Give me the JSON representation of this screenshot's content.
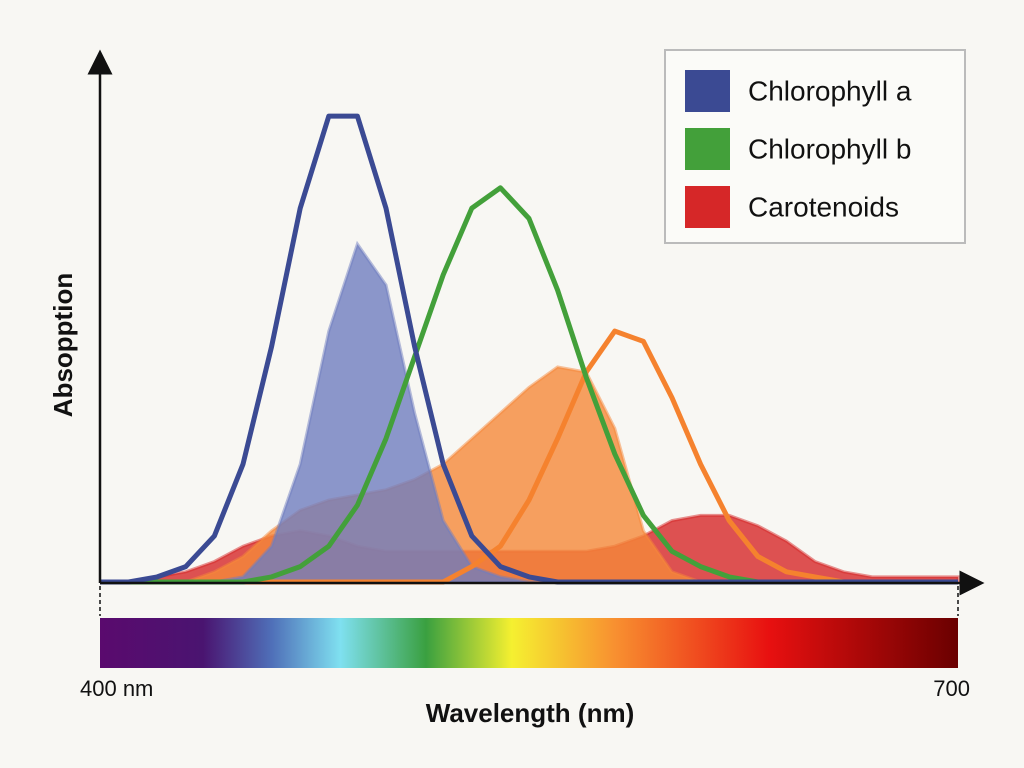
{
  "chart_data": {
    "type": "line",
    "x_label": "Wavelength (nm)",
    "y_label": "Absopption",
    "xlim": [
      400,
      700
    ],
    "xticks": [
      {
        "value": 400,
        "label": "400 nm"
      },
      700
    ],
    "ylim": [
      0,
      1
    ],
    "legend": "top-right",
    "x": [
      400,
      410,
      420,
      430,
      440,
      450,
      460,
      470,
      480,
      490,
      500,
      510,
      520,
      530,
      540,
      550,
      560,
      570,
      580,
      590,
      600,
      610,
      620,
      630,
      640,
      650,
      660,
      670,
      680,
      690,
      700
    ],
    "series": [
      {
        "name": "Carotenoids",
        "color": "#d62728",
        "style": "area",
        "values": [
          0,
          0,
          0.01,
          0.02,
          0.04,
          0.07,
          0.09,
          0.1,
          0.09,
          0.07,
          0.06,
          0.06,
          0.06,
          0.06,
          0.06,
          0.06,
          0.06,
          0.06,
          0.07,
          0.09,
          0.12,
          0.13,
          0.13,
          0.11,
          0.08,
          0.04,
          0.02,
          0.01,
          0.01,
          0.01,
          0.01
        ]
      },
      {
        "color": "#f5883a",
        "style": "area",
        "values": [
          0,
          0,
          0,
          0,
          0.02,
          0.05,
          0.1,
          0.14,
          0.16,
          0.17,
          0.18,
          0.2,
          0.23,
          0.28,
          0.33,
          0.38,
          0.42,
          0.41,
          0.3,
          0.1,
          0.02,
          0,
          0,
          0,
          0,
          0,
          0,
          0,
          0,
          0,
          0
        ]
      },
      {
        "color": "#6f7dbf",
        "style": "area",
        "values": [
          0,
          0,
          0,
          0,
          0,
          0.01,
          0.07,
          0.23,
          0.49,
          0.66,
          0.58,
          0.33,
          0.12,
          0.03,
          0.01,
          0,
          0,
          0,
          0,
          0,
          0,
          0,
          0,
          0,
          0,
          0,
          0,
          0,
          0,
          0,
          0
        ]
      },
      {
        "color": "#f5822e",
        "style": "line",
        "values": [
          0,
          0,
          0,
          0,
          0,
          0,
          0,
          0,
          0,
          0,
          0,
          0,
          0,
          0.03,
          0.07,
          0.16,
          0.28,
          0.41,
          0.49,
          0.47,
          0.36,
          0.23,
          0.12,
          0.05,
          0.02,
          0.01,
          0,
          0,
          0,
          0,
          0
        ]
      },
      {
        "name": "Chlorophyll b",
        "color": "#43a03a",
        "style": "line",
        "values": [
          0,
          0,
          0,
          0,
          0,
          0,
          0.01,
          0.03,
          0.07,
          0.15,
          0.28,
          0.44,
          0.6,
          0.73,
          0.77,
          0.71,
          0.57,
          0.4,
          0.25,
          0.13,
          0.06,
          0.03,
          0.01,
          0,
          0,
          0,
          0,
          0,
          0,
          0,
          0
        ]
      },
      {
        "name": "Chlorophyll a",
        "color": "#3b4a93",
        "style": "line",
        "values": [
          0,
          0,
          0.01,
          0.03,
          0.09,
          0.23,
          0.46,
          0.73,
          0.91,
          0.91,
          0.73,
          0.46,
          0.23,
          0.09,
          0.03,
          0.01,
          0,
          0,
          0,
          0,
          0,
          0,
          0,
          0,
          0,
          0,
          0,
          0,
          0,
          0,
          0
        ]
      }
    ]
  }
}
